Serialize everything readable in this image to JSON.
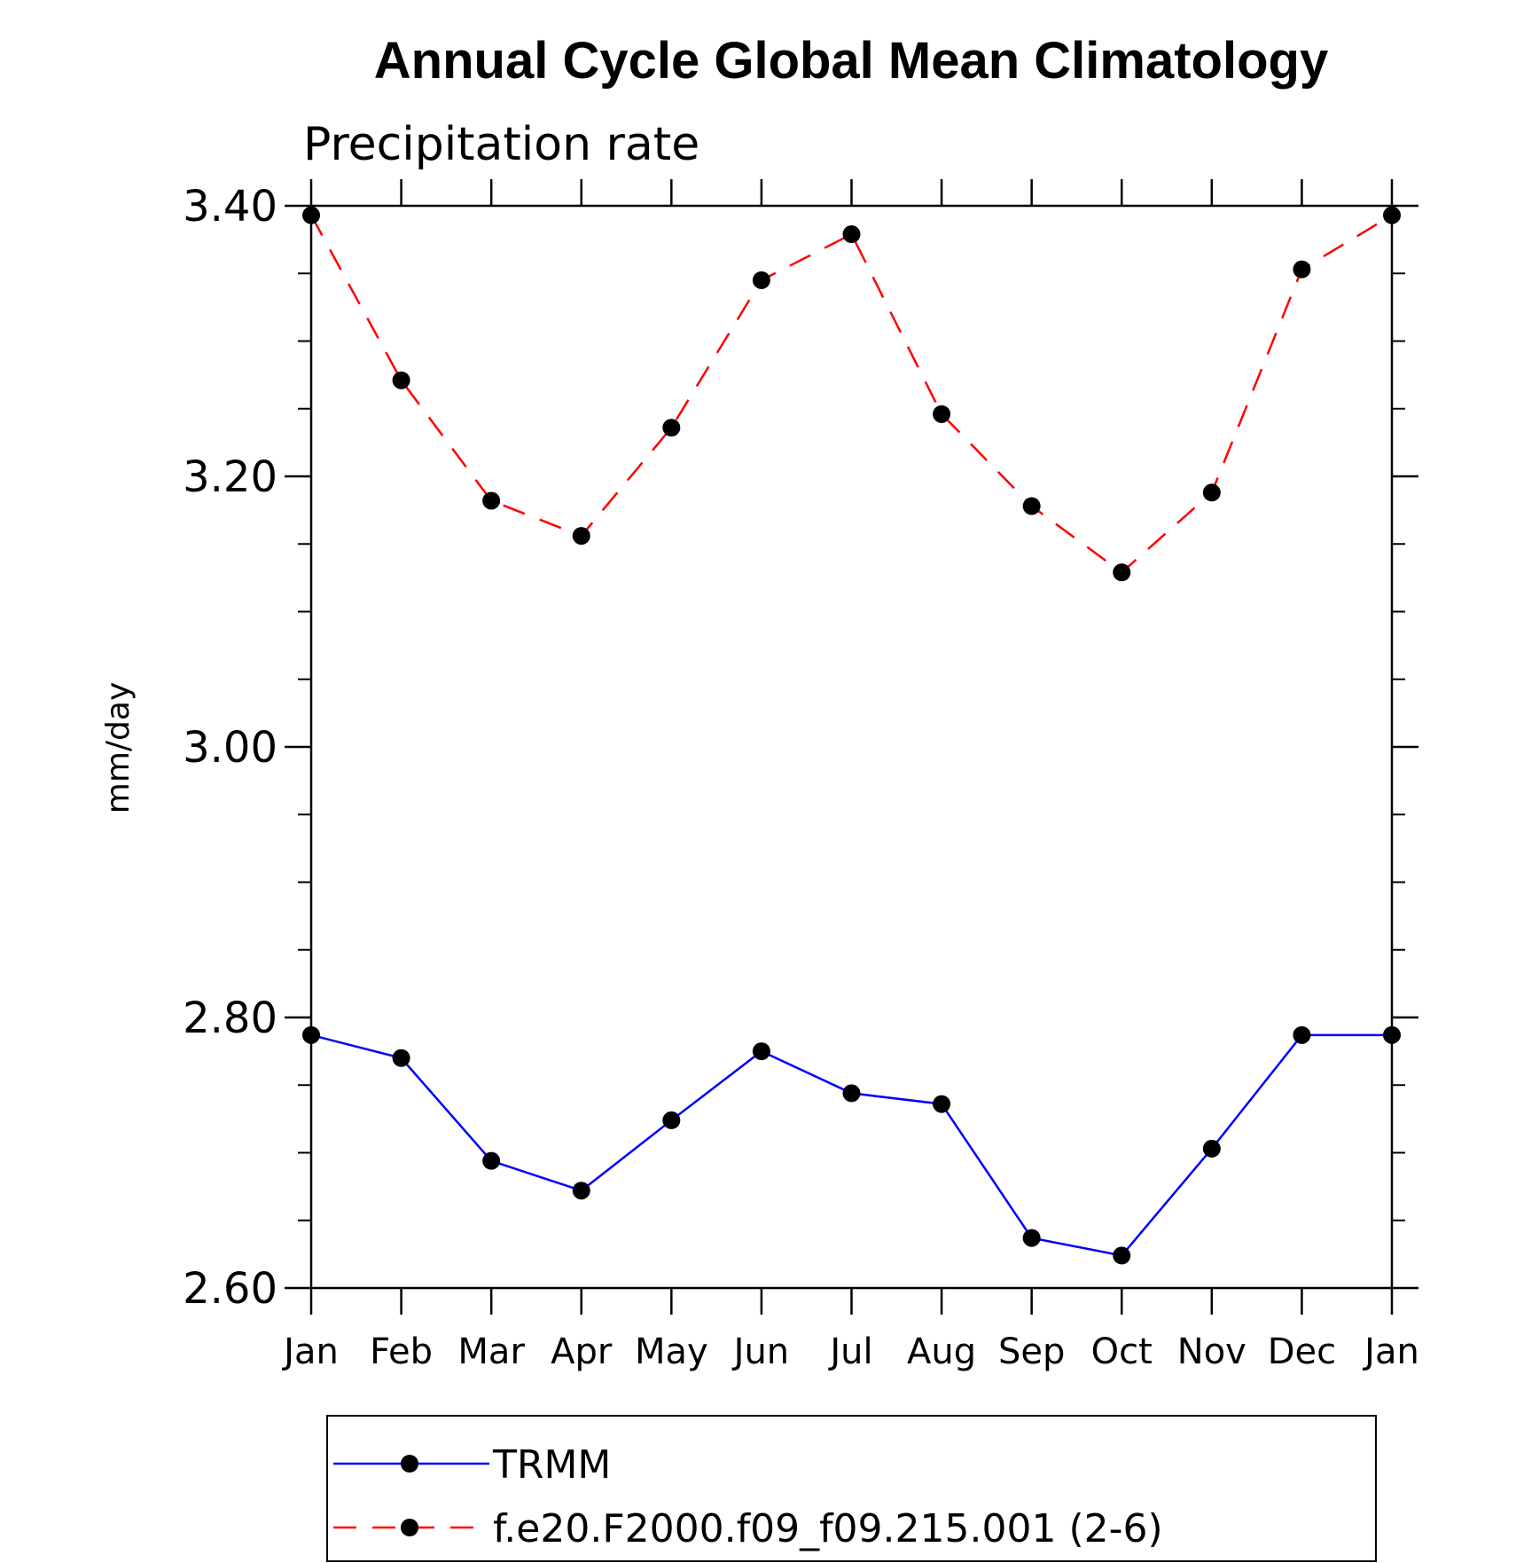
{
  "chart_data": {
    "type": "line",
    "title": "Annual Cycle Global Mean Climatology",
    "subtitle": "Precipitation rate",
    "xlabel": "",
    "ylabel": "mm/day",
    "categories": [
      "Jan",
      "Feb",
      "Mar",
      "Apr",
      "May",
      "Jun",
      "Jul",
      "Aug",
      "Sep",
      "Oct",
      "Nov",
      "Dec",
      "Jan"
    ],
    "ylim": [
      2.6,
      3.4
    ],
    "yticks": [
      "2.60",
      "2.80",
      "3.00",
      "3.20",
      "3.40"
    ],
    "ytick_values": [
      2.6,
      2.8,
      3.0,
      3.2,
      3.4
    ],
    "minor_step": 0.05,
    "grid": false,
    "legend_position": "bottom",
    "series": [
      {
        "name": "TRMM",
        "color": "#0000ff",
        "dash": "solid",
        "marker": "filled-circle",
        "values": [
          2.787,
          2.77,
          2.694,
          2.672,
          2.724,
          2.775,
          2.744,
          2.736,
          2.637,
          2.624,
          2.703,
          2.787,
          2.787
        ]
      },
      {
        "name": "f.e20.F2000.f09_f09.215.001 (2-6)",
        "color": "#ff0000",
        "dash": "dashed",
        "marker": "filled-circle",
        "values": [
          3.393,
          3.271,
          3.182,
          3.156,
          3.236,
          3.345,
          3.379,
          3.246,
          3.178,
          3.129,
          3.188,
          3.353,
          3.393
        ]
      }
    ]
  }
}
